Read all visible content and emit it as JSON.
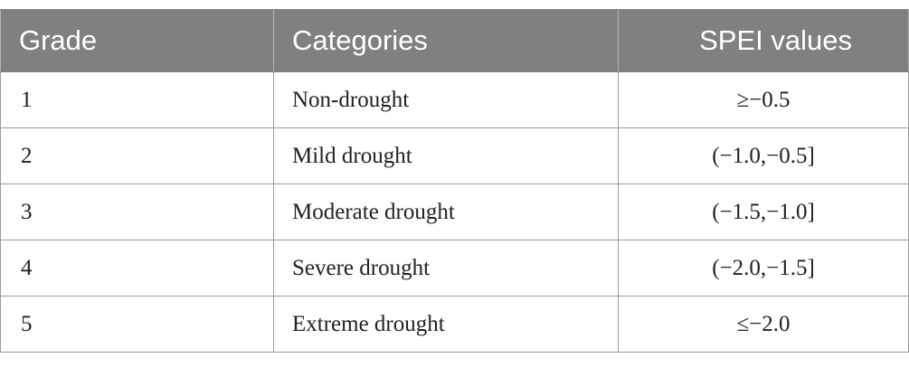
{
  "table": {
    "headers": [
      "Grade",
      "Categories",
      "SPEI values"
    ],
    "rows": [
      {
        "grade": "1",
        "category": "Non-drought",
        "spei": "≥−0.5"
      },
      {
        "grade": "2",
        "category": "Mild drought",
        "spei": "(−1.0,−0.5]"
      },
      {
        "grade": "3",
        "category": "Moderate drought",
        "spei": "(−1.5,−1.0]"
      },
      {
        "grade": "4",
        "category": "Severe drought",
        "spei": "(−2.0,−1.5]"
      },
      {
        "grade": "5",
        "category": "Extreme drought",
        "spei": "≤−2.0"
      }
    ]
  },
  "colors": {
    "header_bg": "#808080",
    "header_text": "#ffffff",
    "border": "#9c9c9c"
  }
}
